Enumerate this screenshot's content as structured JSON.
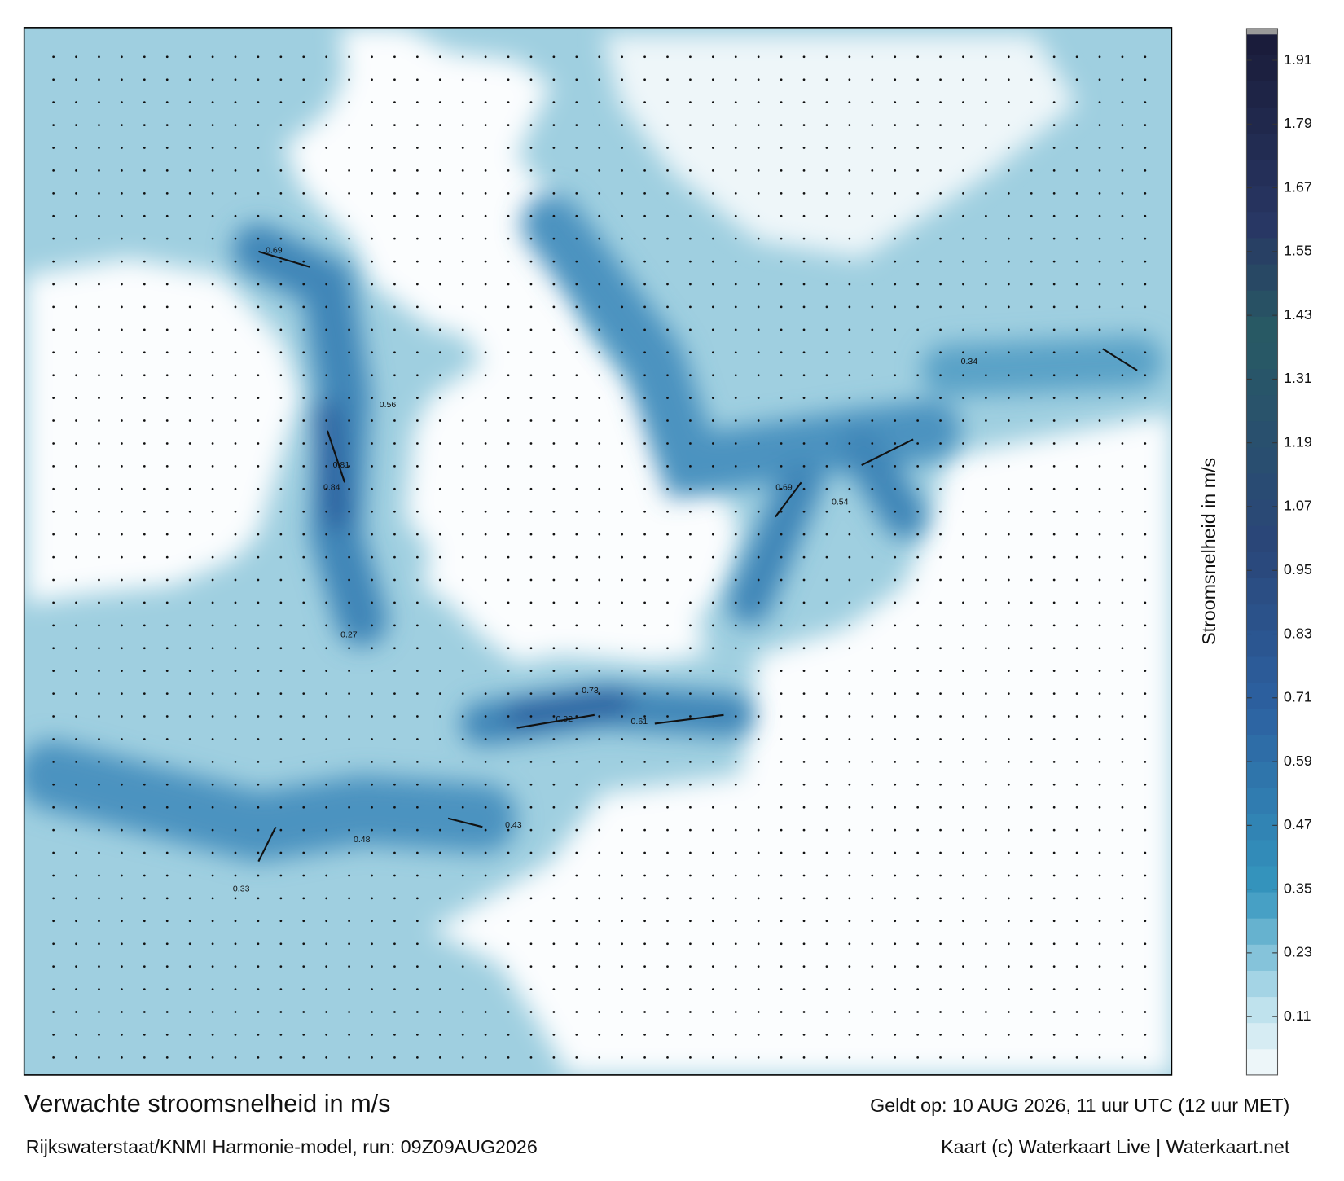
{
  "title": "Verwachte stroomsnelheid in m/s",
  "subtitle": "Rijkswaterstaat/KNMI Harmonie-model, run: 09Z09AUG2026",
  "valid_time": "Geldt op: 10 AUG 2026, 11 uur UTC (12 uur MET)",
  "credit": "Kaart (c) Waterkaart Live | Waterkaart.net",
  "colorbar": {
    "label": "Stroomsnelheid in m/s",
    "lim": [
      0,
      1.97
    ],
    "ticks": [
      0.11,
      0.23,
      0.35,
      0.47,
      0.59,
      0.71,
      0.83,
      0.95,
      1.07,
      1.19,
      1.31,
      1.43,
      1.55,
      1.67,
      1.79,
      1.91
    ]
  },
  "current_labels": [
    0.69,
    0.84,
    0.92,
    0.73,
    0.61,
    0.69,
    0.54,
    0.56,
    0.81,
    0.43,
    0.48,
    0.33,
    0.27,
    0.34
  ]
}
